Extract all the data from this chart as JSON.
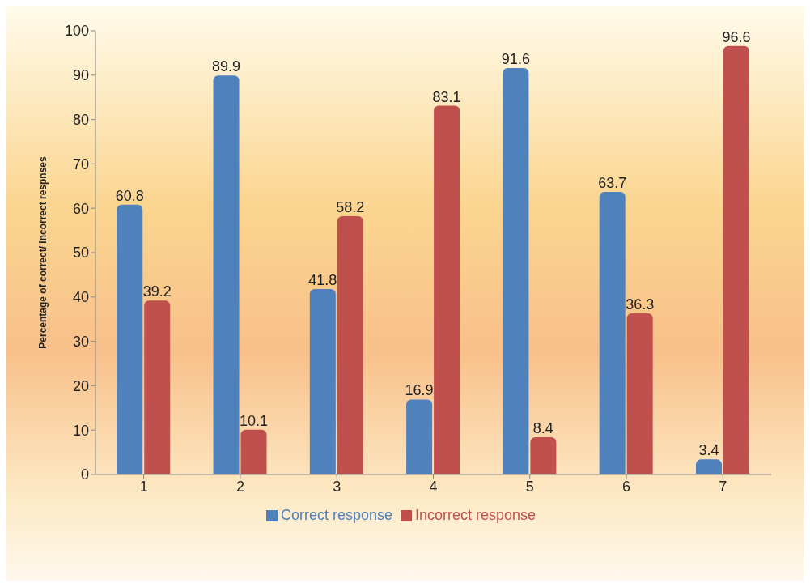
{
  "chart_data": {
    "type": "bar",
    "ylabel": "Percentage of  correct/ incorrect respnses",
    "categories": [
      "1",
      "2",
      "3",
      "4",
      "5",
      "6",
      "7"
    ],
    "series": [
      {
        "name": "Correct response",
        "color": "#4f81bd",
        "values": [
          60.8,
          89.9,
          41.8,
          16.9,
          91.6,
          63.7,
          3.4
        ]
      },
      {
        "name": "Incorrect response",
        "color": "#c0504d",
        "values": [
          39.2,
          10.1,
          58.2,
          83.1,
          8.4,
          36.3,
          96.6
        ]
      }
    ],
    "ylim": [
      0,
      100
    ],
    "yticks": [
      0,
      10,
      20,
      30,
      40,
      50,
      60,
      70,
      80,
      90,
      100
    ],
    "grid": false,
    "legend": "bottom",
    "data_labels": true
  }
}
